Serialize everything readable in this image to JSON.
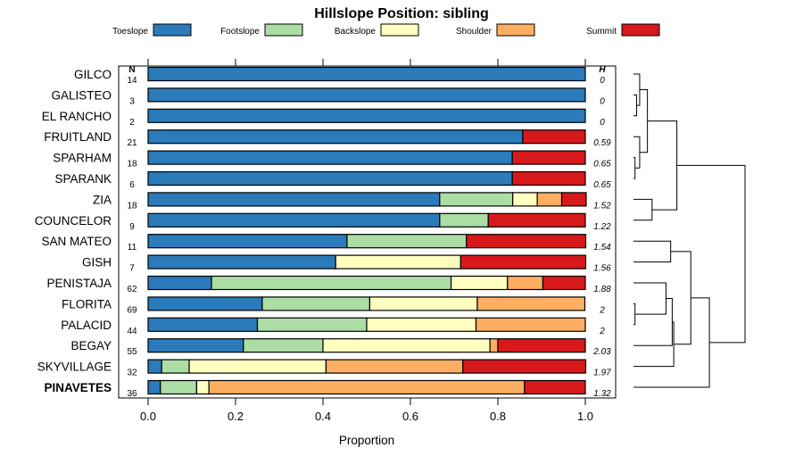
{
  "chart_data": {
    "type": "bar",
    "orientation": "horizontal",
    "stacked": true,
    "title": "Hillslope Position: sibling",
    "xlabel": "Proportion",
    "ylabel": "",
    "xlim": [
      0,
      1
    ],
    "xticks": [
      0,
      0.2,
      0.4,
      0.6,
      0.8,
      1
    ],
    "xtick_labels": [
      "0.0",
      "0.2",
      "0.4",
      "0.6",
      "0.8",
      "1.0"
    ],
    "n_header": "N",
    "h_header": "H",
    "legend_placement": "top",
    "series": [
      {
        "name": "Toeslope",
        "color": "#2B7BBA"
      },
      {
        "name": "Footslope",
        "color": "#ABDDA4"
      },
      {
        "name": "Backslope",
        "color": "#FFFFBF"
      },
      {
        "name": "Shoulder",
        "color": "#FDAE61"
      },
      {
        "name": "Summit",
        "color": "#D7191C"
      }
    ],
    "rows": [
      {
        "label": "GILCO",
        "n": "14",
        "h": "0",
        "values": [
          1,
          0,
          0,
          0,
          0
        ]
      },
      {
        "label": "GALISTEO",
        "n": "3",
        "h": "0",
        "values": [
          1,
          0,
          0,
          0,
          0
        ]
      },
      {
        "label": "EL RANCHO",
        "n": "2",
        "h": "0",
        "values": [
          1,
          0,
          0,
          0,
          0
        ]
      },
      {
        "label": "FRUITLAND",
        "n": "21",
        "h": "0.59",
        "values": [
          0.857,
          0,
          0,
          0,
          0.143
        ]
      },
      {
        "label": "SPARHAM",
        "n": "18",
        "h": "0.65",
        "values": [
          0.833,
          0,
          0,
          0,
          0.167
        ]
      },
      {
        "label": "SPARANK",
        "n": "6",
        "h": "0.65",
        "values": [
          0.833,
          0,
          0,
          0,
          0.167
        ]
      },
      {
        "label": "ZIA",
        "n": "18",
        "h": "1.52",
        "values": [
          0.667,
          0.167,
          0.056,
          0.056,
          0.056
        ]
      },
      {
        "label": "COUNCELOR",
        "n": "9",
        "h": "1.22",
        "values": [
          0.667,
          0.111,
          0,
          0,
          0.222
        ]
      },
      {
        "label": "SAN MATEO",
        "n": "11",
        "h": "1.54",
        "values": [
          0.455,
          0.273,
          0,
          0,
          0.273
        ]
      },
      {
        "label": "GISH",
        "n": "7",
        "h": "1.56",
        "values": [
          0.429,
          0,
          0.286,
          0,
          0.286
        ]
      },
      {
        "label": "PENISTAJA",
        "n": "62",
        "h": "1.88",
        "values": [
          0.145,
          0.548,
          0.129,
          0.081,
          0.097
        ]
      },
      {
        "label": "FLORITA",
        "n": "69",
        "h": "2",
        "values": [
          0.261,
          0.246,
          0.246,
          0.246,
          0
        ]
      },
      {
        "label": "PALACID",
        "n": "44",
        "h": "2",
        "values": [
          0.25,
          0.25,
          0.25,
          0.25,
          0
        ]
      },
      {
        "label": "BEGAY",
        "n": "55",
        "h": "2.03",
        "values": [
          0.218,
          0.182,
          0.382,
          0.018,
          0.2
        ]
      },
      {
        "label": "SKYVILLAGE",
        "n": "32",
        "h": "1.97",
        "values": [
          0.031,
          0.063,
          0.313,
          0.313,
          0.281
        ]
      },
      {
        "label": "PINAVETES",
        "n": "36",
        "h": "1.32",
        "values": [
          0.028,
          0.083,
          0.028,
          0.722,
          0.139
        ],
        "highlight": true
      }
    ],
    "dendrogram": {
      "leaf_order": [
        "GILCO",
        "GALISTEO",
        "EL RANCHO",
        "FRUITLAND",
        "SPARHAM",
        "SPARANK",
        "ZIA",
        "COUNCELOR",
        "SAN MATEO",
        "GISH",
        "PENISTAJA",
        "FLORITA",
        "PALACID",
        "BEGAY",
        "SKYVILLAGE",
        "PINAVETES"
      ],
      "merges": [
        [
          1,
          2,
          0.02
        ],
        [
          0,
          16,
          0.04
        ],
        [
          4,
          5,
          0.01
        ],
        [
          3,
          18,
          0.04
        ],
        [
          17,
          19,
          0.09
        ],
        [
          6,
          7,
          0.12
        ],
        [
          20,
          21,
          0.28
        ],
        [
          8,
          9,
          0.24
        ],
        [
          11,
          12,
          0.01
        ],
        [
          10,
          24,
          0.21
        ],
        [
          13,
          25,
          0.25
        ],
        [
          14,
          26,
          0.26
        ],
        [
          23,
          27,
          0.37
        ],
        [
          15,
          28,
          0.49
        ],
        [
          22,
          29,
          0.72
        ]
      ]
    }
  }
}
